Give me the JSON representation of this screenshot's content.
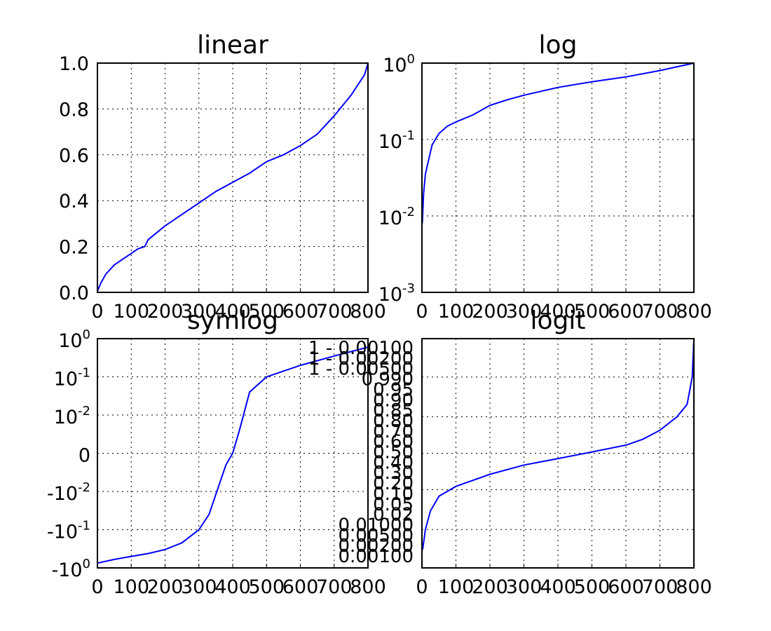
{
  "chart_data": [
    {
      "type": "line",
      "title": "linear",
      "yscale": "linear",
      "grid": true,
      "xlim": [
        0,
        800
      ],
      "ylim": [
        0.0,
        1.0
      ],
      "xticks": [
        "0",
        "100",
        "200",
        "300",
        "400",
        "500",
        "600",
        "700",
        "800"
      ],
      "yticks": [
        "0.0",
        "0.2",
        "0.4",
        "0.6",
        "0.8",
        "1.0"
      ],
      "line_color": "#0000ff",
      "series": [
        {
          "x": [
            0,
            10,
            25,
            50,
            100,
            120,
            140,
            150,
            200,
            250,
            300,
            350,
            400,
            450,
            500,
            550,
            600,
            650,
            700,
            750,
            790,
            800
          ],
          "y": [
            0.005,
            0.04,
            0.08,
            0.12,
            0.17,
            0.19,
            0.2,
            0.23,
            0.29,
            0.34,
            0.39,
            0.44,
            0.48,
            0.52,
            0.57,
            0.6,
            0.64,
            0.69,
            0.77,
            0.86,
            0.95,
            1.0
          ]
        }
      ]
    },
    {
      "type": "line",
      "title": "log",
      "yscale": "log",
      "grid": true,
      "xlim": [
        0,
        800
      ],
      "ylim": [
        0.001,
        1.0
      ],
      "xticks": [
        "0",
        "100",
        "200",
        "300",
        "400",
        "500",
        "600",
        "700",
        "800"
      ],
      "yticks": [
        {
          "base": "10",
          "exp": "-3"
        },
        {
          "base": "10",
          "exp": "-2"
        },
        {
          "base": "10",
          "exp": "-1"
        },
        {
          "base": "10",
          "exp": "0"
        }
      ],
      "line_color": "#0000ff",
      "series": [
        {
          "x": [
            1,
            5,
            10,
            20,
            30,
            50,
            75,
            100,
            150,
            200,
            250,
            300,
            400,
            500,
            600,
            700,
            800
          ],
          "y": [
            0.008,
            0.02,
            0.035,
            0.055,
            0.085,
            0.12,
            0.15,
            0.17,
            0.21,
            0.28,
            0.33,
            0.38,
            0.48,
            0.57,
            0.66,
            0.8,
            1.0
          ]
        }
      ]
    },
    {
      "type": "line",
      "title": "symlog",
      "yscale": "symlog",
      "grid": true,
      "xlim": [
        0,
        800
      ],
      "ylim": [
        -1.0,
        1.0
      ],
      "xticks": [
        "0",
        "100",
        "200",
        "300",
        "400",
        "500",
        "600",
        "700",
        "800"
      ],
      "yticks": [
        {
          "base": "-10",
          "exp": "0"
        },
        {
          "base": "-10",
          "exp": "-1"
        },
        {
          "base": "-10",
          "exp": "-2"
        },
        {
          "base": "0",
          "exp": ""
        },
        {
          "base": "10",
          "exp": "-2"
        },
        {
          "base": "10",
          "exp": "-1"
        },
        {
          "base": "10",
          "exp": "0"
        }
      ],
      "line_color": "#0000ff",
      "series": [
        {
          "x": [
            0,
            50,
            100,
            150,
            200,
            250,
            300,
            330,
            350,
            380,
            400,
            420,
            450,
            500,
            600,
            700,
            800
          ],
          "y": [
            -0.75,
            -0.6,
            -0.5,
            -0.42,
            -0.33,
            -0.22,
            -0.1,
            -0.04,
            -0.012,
            -0.003,
            0.0,
            0.006,
            0.04,
            0.1,
            0.2,
            0.35,
            0.6
          ]
        }
      ]
    },
    {
      "type": "line",
      "title": "logit",
      "yscale": "logit",
      "grid": true,
      "xlim": [
        0,
        800
      ],
      "xticks": [
        "0",
        "100",
        "200",
        "300",
        "400",
        "500",
        "600",
        "700",
        "800"
      ],
      "yticks_overlapping": [
        "1 - 0.00100",
        "1 - 0.00200",
        "1 - 0.00500",
        "0.990",
        "0.95",
        "0.90",
        "0.85",
        "0.80",
        "0.70",
        "0.60",
        "0.50",
        "0.40",
        "0.30",
        "0.20",
        "0.10",
        "0.05",
        "0.02",
        "0.01000",
        "0.00500",
        "0.00200",
        "0.00100"
      ],
      "line_color": "#0000ff",
      "series": [
        {
          "x": [
            2,
            10,
            25,
            50,
            100,
            200,
            300,
            400,
            500,
            600,
            650,
            700,
            750,
            780,
            795,
            800
          ],
          "y": [
            0.003,
            0.01,
            0.03,
            0.07,
            0.12,
            0.22,
            0.33,
            0.42,
            0.52,
            0.62,
            0.7,
            0.8,
            0.9,
            0.95,
            0.99,
            0.9999
          ]
        }
      ]
    }
  ]
}
